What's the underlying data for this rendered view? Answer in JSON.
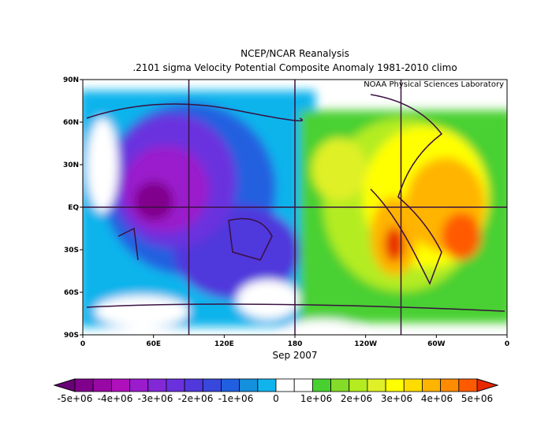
{
  "header": {
    "title": "NCEP/NCAR Reanalysis",
    "subtitle": ".2101 sigma Velocity Potential  Composite Anomaly 1981-2010 climo"
  },
  "map": {
    "credit": "NOAA Physical Sciences Laboratory",
    "xlabel": "Sep 2007",
    "lon_ticks": [
      "0",
      "60E",
      "120E",
      "180",
      "120W",
      "60W",
      "0"
    ],
    "lat_ticks": [
      "90N",
      "60N",
      "30N",
      "EQ",
      "30S",
      "60S",
      "90S"
    ]
  },
  "colorbar": {
    "colors": [
      "#6a0078",
      "#80008c",
      "#9808a4",
      "#b010bc",
      "#9a1ccc",
      "#8228d6",
      "#6a30de",
      "#5038dc",
      "#3848dc",
      "#2060e0",
      "#1490dc",
      "#10b4ec",
      "#ffffff",
      "#ffffff",
      "#48d030",
      "#84dc28",
      "#b4ec20",
      "#e0f028",
      "#ffff00",
      "#ffdc00",
      "#ffb400",
      "#ff8c00",
      "#ff5a00",
      "#e82800"
    ],
    "labels": [
      "-5e+06",
      "-4e+06",
      "-3e+06",
      "-2e+06",
      "-1e+06",
      "0",
      "1e+06",
      "2e+06",
      "3e+06",
      "4e+06",
      "5e+06"
    ]
  }
}
